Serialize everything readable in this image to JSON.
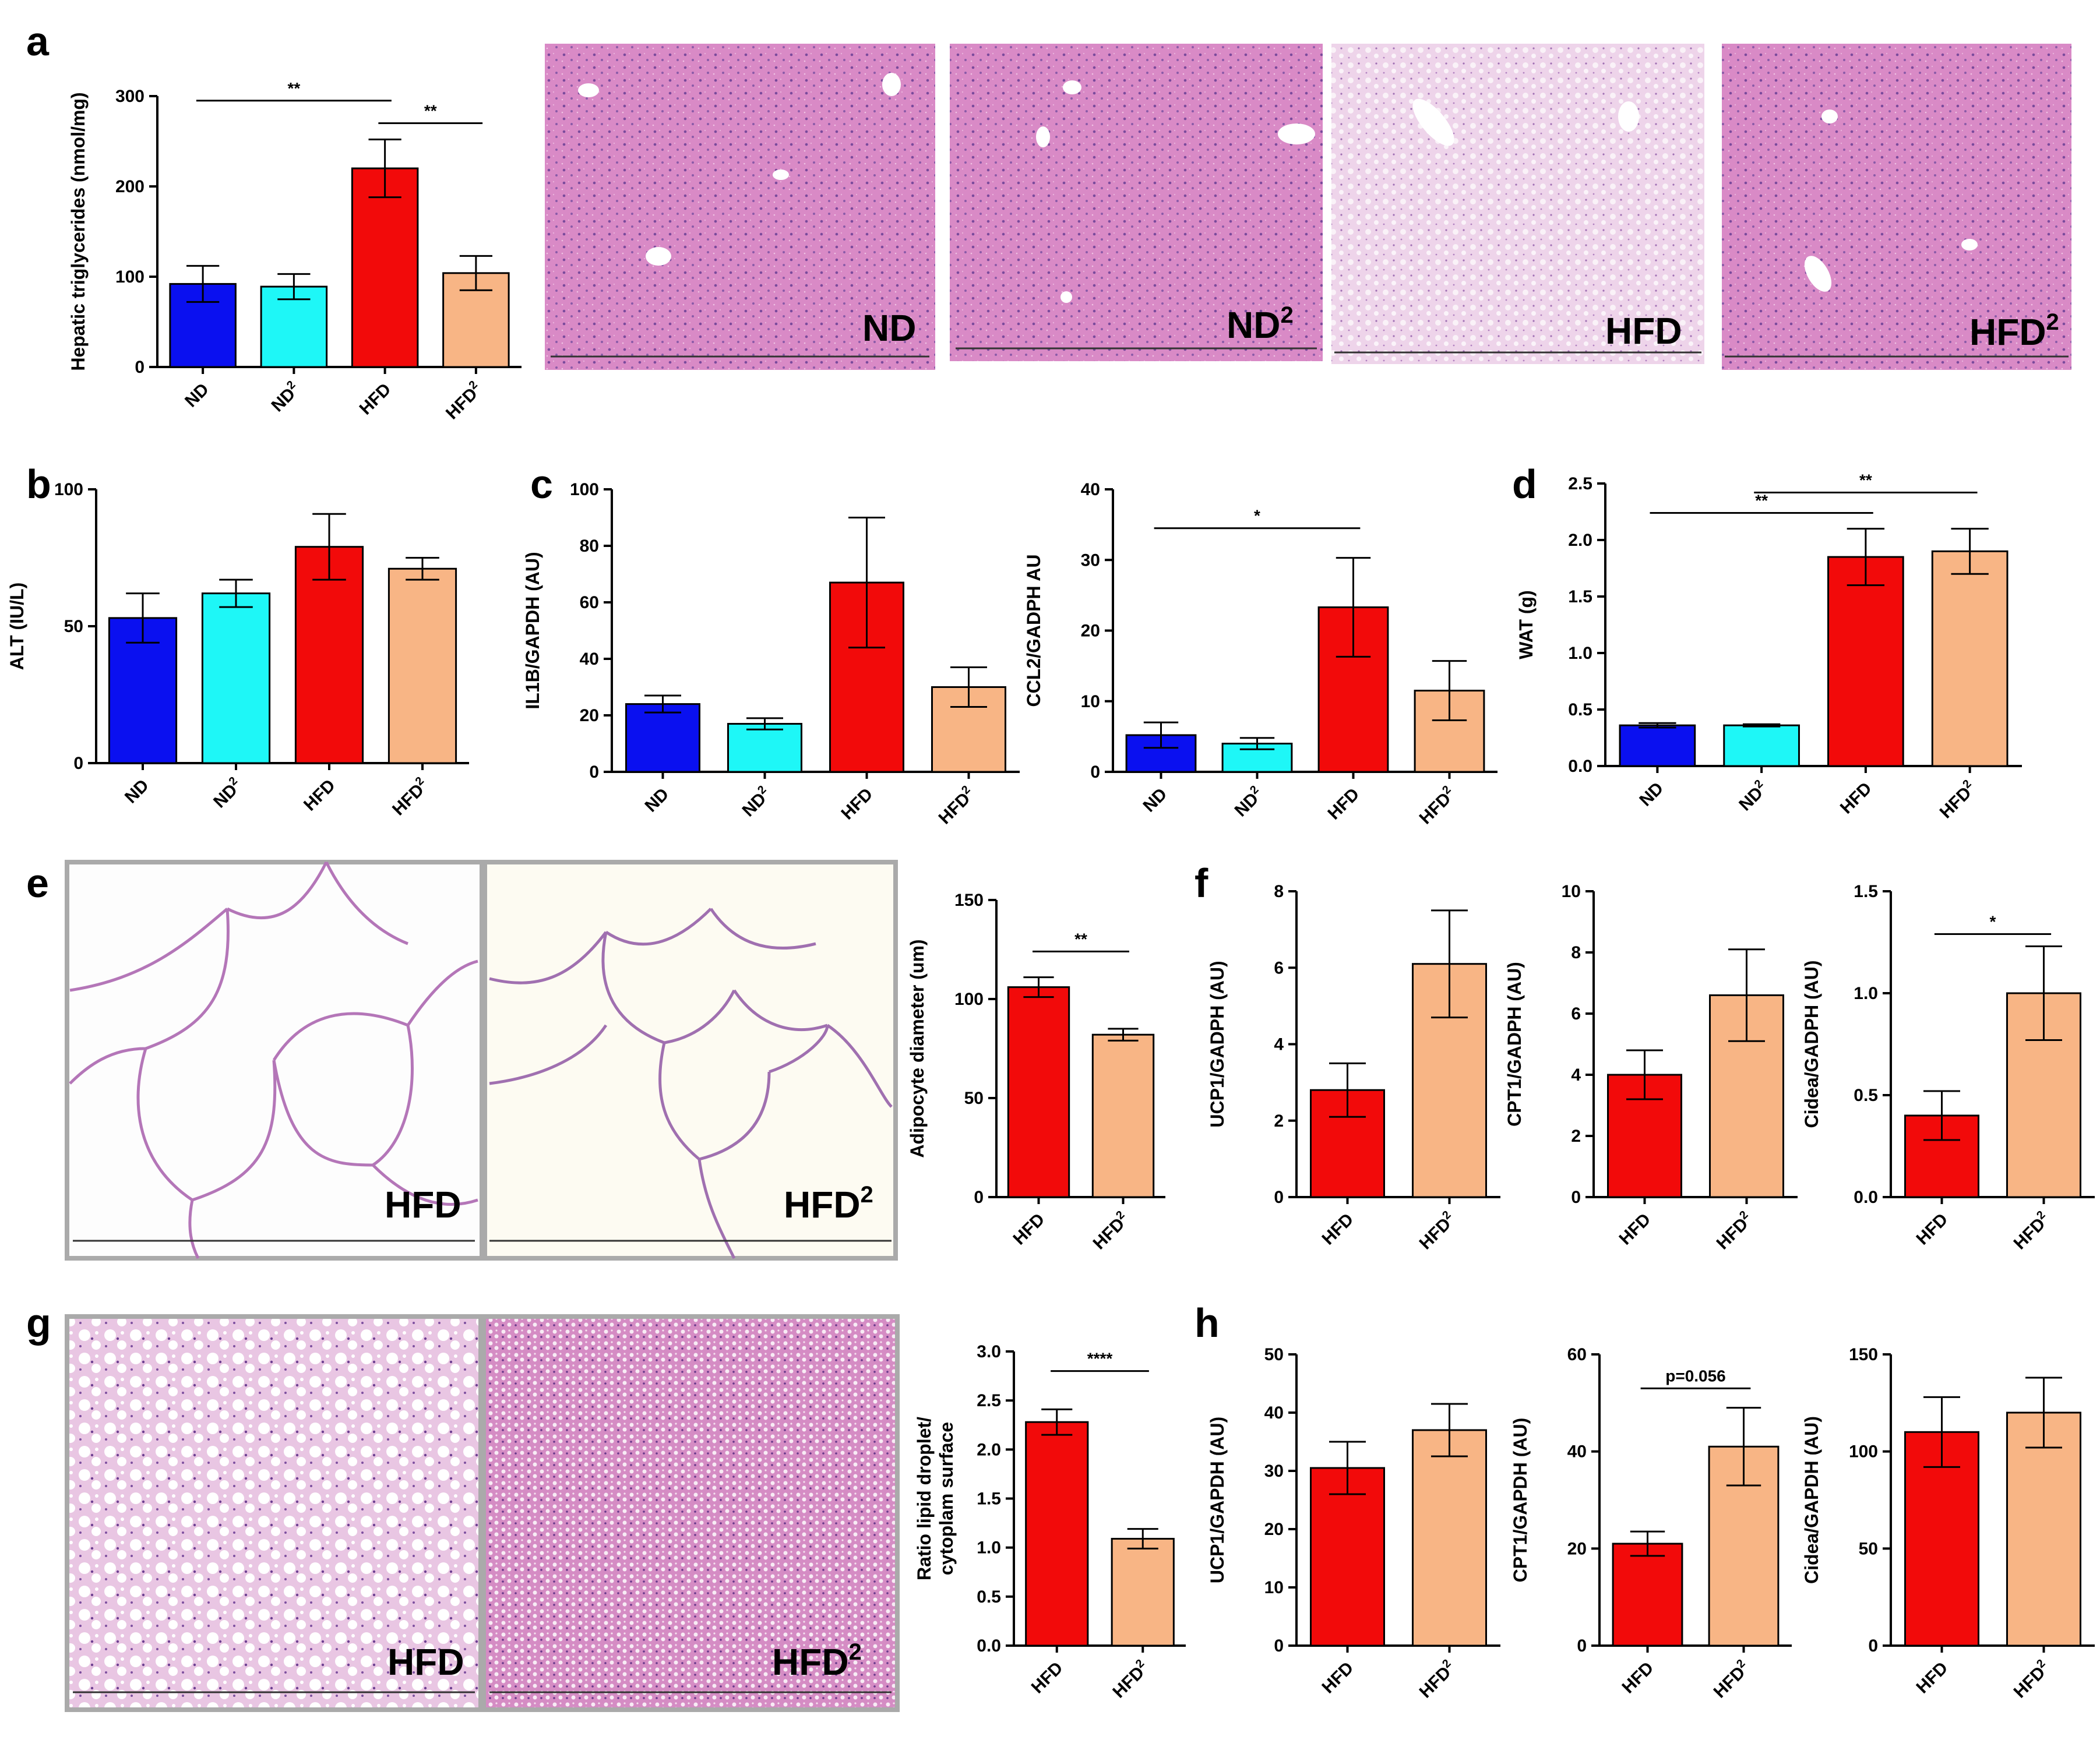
{
  "panels": {
    "a": "a",
    "b": "b",
    "c": "c",
    "d": "d",
    "e": "e",
    "f": "f",
    "g": "g",
    "h": "h"
  },
  "colors": {
    "ND": "#0a10f0",
    "ND2": "#1ef7f7",
    "HFD": "#f20a0a",
    "HFD2": "#f8b585"
  },
  "histology": {
    "liver": [
      {
        "label": "ND",
        "sup": ""
      },
      {
        "label": "ND",
        "sup": "2"
      },
      {
        "label": "HFD",
        "sup": ""
      },
      {
        "label": "HFD",
        "sup": "2"
      }
    ],
    "wat": [
      {
        "label": "HFD",
        "sup": ""
      },
      {
        "label": "HFD",
        "sup": "2"
      }
    ],
    "bat": [
      {
        "label": "HFD",
        "sup": ""
      },
      {
        "label": "HFD",
        "sup": "2"
      }
    ]
  },
  "chart_data": [
    {
      "id": "a",
      "type": "bar",
      "ylabel": "Hepatic triglycerides (nmol/mg)",
      "categories": [
        "ND",
        "ND2",
        "HFD",
        "HFD2"
      ],
      "values": [
        92,
        89,
        220,
        104
      ],
      "errors": [
        20,
        14,
        32,
        19
      ],
      "ylim": [
        0,
        300
      ],
      "yticks": [
        0,
        100,
        200,
        300
      ],
      "tick_labels": [
        "0",
        "100",
        "200",
        "300"
      ],
      "sig": [
        {
          "from": 0,
          "to": 2,
          "label": "**",
          "y": 295
        },
        {
          "from": 2,
          "to": 3,
          "label": "**",
          "y": 270
        }
      ]
    },
    {
      "id": "b",
      "type": "bar",
      "ylabel": "ALT (IU/L)",
      "categories": [
        "ND",
        "ND2",
        "HFD",
        "HFD2"
      ],
      "values": [
        53,
        62,
        79,
        71
      ],
      "errors": [
        9,
        5,
        12,
        4
      ],
      "ylim": [
        0,
        100
      ],
      "yticks": [
        0,
        50,
        100
      ],
      "tick_labels": [
        "0",
        "50",
        "100"
      ],
      "sig": []
    },
    {
      "id": "c1",
      "type": "bar",
      "ylabel": "IL1B/GAPDH (AU)",
      "categories": [
        "ND",
        "ND2",
        "HFD",
        "HFD2"
      ],
      "values": [
        24,
        17,
        67,
        30
      ],
      "errors": [
        3,
        2,
        23,
        7
      ],
      "ylim": [
        0,
        100
      ],
      "yticks": [
        0,
        20,
        40,
        60,
        80,
        100
      ],
      "tick_labels": [
        "0",
        "20",
        "40",
        "60",
        "80",
        "100"
      ],
      "sig": []
    },
    {
      "id": "c2",
      "type": "bar",
      "ylabel": "CCL2/GADPH AU",
      "categories": [
        "ND",
        "ND2",
        "HFD",
        "HFD2"
      ],
      "values": [
        5.2,
        4.0,
        23.3,
        11.5
      ],
      "errors": [
        1.8,
        0.8,
        7.0,
        4.2
      ],
      "ylim": [
        0,
        40
      ],
      "yticks": [
        0,
        10,
        20,
        30,
        40
      ],
      "tick_labels": [
        "0",
        "10",
        "20",
        "30",
        "40"
      ],
      "sig": [
        {
          "from": 0,
          "to": 2,
          "label": "*",
          "y": 34.5
        }
      ]
    },
    {
      "id": "d",
      "type": "bar",
      "ylabel": "WAT (g)",
      "categories": [
        "ND",
        "ND2",
        "HFD",
        "HFD2"
      ],
      "values": [
        0.36,
        0.36,
        1.85,
        1.9
      ],
      "errors": [
        0.02,
        0.01,
        0.25,
        0.2
      ],
      "ylim": [
        0,
        2.5
      ],
      "yticks": [
        0,
        0.5,
        1,
        1.5,
        2,
        2.5
      ],
      "tick_labels": [
        "0.0",
        "0.5",
        "1.0",
        "1.5",
        "2.0",
        "2.5"
      ],
      "sig": [
        {
          "from": 0,
          "to": 2,
          "label": "**",
          "y": 2.24
        },
        {
          "from": 1,
          "to": 3,
          "label": "**",
          "y": 2.42
        }
      ]
    },
    {
      "id": "e",
      "type": "bar",
      "ylabel": "Adipocyte diameter (um)",
      "categories": [
        "HFD",
        "HFD2"
      ],
      "values": [
        106,
        82
      ],
      "errors": [
        5,
        3
      ],
      "ylim": [
        0,
        150
      ],
      "yticks": [
        0,
        50,
        100,
        150
      ],
      "tick_labels": [
        "0",
        "50",
        "100",
        "150"
      ],
      "sig": [
        {
          "from": 0,
          "to": 1,
          "label": "**",
          "y": 124
        }
      ]
    },
    {
      "id": "f1",
      "type": "bar",
      "ylabel": "UCP1/GADPH (AU)",
      "categories": [
        "HFD",
        "HFD2"
      ],
      "values": [
        2.8,
        6.1
      ],
      "errors": [
        0.7,
        1.4
      ],
      "ylim": [
        0,
        8
      ],
      "yticks": [
        0,
        2,
        4,
        6,
        8
      ],
      "tick_labels": [
        "0",
        "2",
        "4",
        "6",
        "8"
      ],
      "sig": []
    },
    {
      "id": "f2",
      "type": "bar",
      "ylabel": "CPT1/GADPH (AU)",
      "categories": [
        "HFD",
        "HFD2"
      ],
      "values": [
        4.0,
        6.6
      ],
      "errors": [
        0.8,
        1.5
      ],
      "ylim": [
        0,
        10
      ],
      "yticks": [
        0,
        2,
        4,
        6,
        8,
        10
      ],
      "tick_labels": [
        "0",
        "2",
        "4",
        "6",
        "8",
        "10"
      ],
      "sig": []
    },
    {
      "id": "f3",
      "type": "bar",
      "ylabel": "Cidea/GADPH (AU)",
      "categories": [
        "HFD",
        "HFD2"
      ],
      "values": [
        0.4,
        1.0
      ],
      "errors": [
        0.12,
        0.23
      ],
      "ylim": [
        0,
        1.5
      ],
      "yticks": [
        0,
        0.5,
        1,
        1.5
      ],
      "tick_labels": [
        "0.0",
        "0.5",
        "1.0",
        "1.5"
      ],
      "sig": [
        {
          "from": 0,
          "to": 1,
          "label": "*",
          "y": 1.29
        }
      ]
    },
    {
      "id": "g",
      "type": "bar",
      "ylabel": "Ratio lipid droplet/ cytoplam surface",
      "categories": [
        "HFD",
        "HFD2"
      ],
      "values": [
        2.28,
        1.09
      ],
      "errors": [
        0.13,
        0.1
      ],
      "ylim": [
        0,
        3
      ],
      "yticks": [
        0,
        0.5,
        1,
        1.5,
        2,
        2.5,
        3
      ],
      "tick_labels": [
        "0.0",
        "0.5",
        "1.0",
        "1.5",
        "2.0",
        "2.5",
        "3.0"
      ],
      "sig": [
        {
          "from": 0,
          "to": 1,
          "label": "****",
          "y": 2.8
        }
      ]
    },
    {
      "id": "h1",
      "type": "bar",
      "ylabel": "UCP1/GAPDH (AU)",
      "categories": [
        "HFD",
        "HFD2"
      ],
      "values": [
        30.5,
        37
      ],
      "errors": [
        4.5,
        4.5
      ],
      "ylim": [
        0,
        50
      ],
      "yticks": [
        0,
        10,
        20,
        30,
        40,
        50
      ],
      "tick_labels": [
        "0",
        "10",
        "20",
        "30",
        "40",
        "50"
      ],
      "sig": []
    },
    {
      "id": "h2",
      "type": "bar",
      "ylabel": "CPT1/GAPDH (AU)",
      "categories": [
        "HFD",
        "HFD2"
      ],
      "values": [
        21,
        41
      ],
      "errors": [
        2.5,
        8
      ],
      "ylim": [
        0,
        60
      ],
      "yticks": [
        0,
        20,
        40,
        60
      ],
      "tick_labels": [
        "0",
        "20",
        "40",
        "60"
      ],
      "sig": [
        {
          "from": 0,
          "to": 1,
          "label": "p=0.056",
          "y": 53
        }
      ]
    },
    {
      "id": "h3",
      "type": "bar",
      "ylabel": "Cidea/GAPDH (AU)",
      "categories": [
        "HFD",
        "HFD2"
      ],
      "values": [
        110,
        120
      ],
      "errors": [
        18,
        18
      ],
      "ylim": [
        0,
        150
      ],
      "yticks": [
        0,
        50,
        100,
        150
      ],
      "tick_labels": [
        "0",
        "50",
        "100",
        "150"
      ],
      "sig": []
    }
  ]
}
